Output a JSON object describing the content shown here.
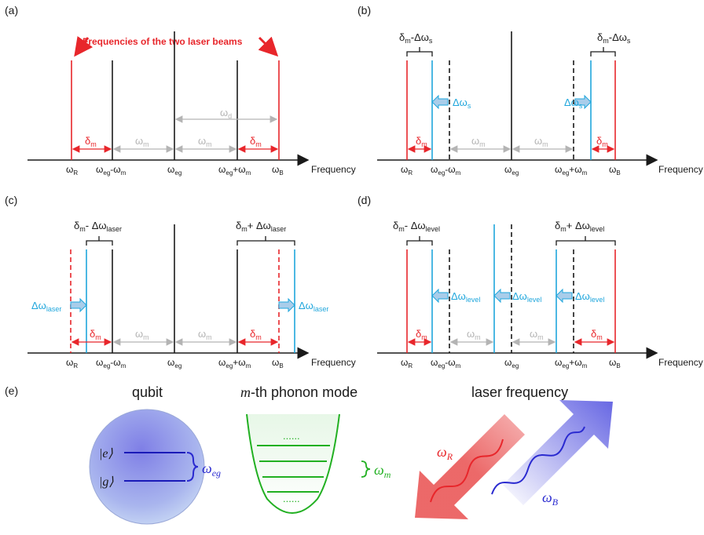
{
  "colors": {
    "red": "#e8262b",
    "cyan": "#1fa6dc",
    "gray": "#b4b4b4",
    "black": "#1a1a1a",
    "blue": "#2a2ad0",
    "green": "#22b022",
    "arrowFill": "#a9cdea"
  },
  "panel_a": {
    "tag": "(a)",
    "callout": "Frequencies of the two laser beams",
    "labels": {
      "wR": "ω",
      "wRsub": "R",
      "lower": "ω",
      "lowerSub": "eg",
      "lowerTail": "-ω",
      "lowerTailSub": "m",
      "center": "ω",
      "centerSub": "eg",
      "upper": "ω",
      "upperSub": "eg",
      "upperTail": "+ω",
      "upperTailSub": "m",
      "wB": "ω",
      "wBsub": "B"
    },
    "axis_label": "Frequency",
    "delta": "δ",
    "deltaSub": "m",
    "omega_m": "ω",
    "omega_mSub": "m",
    "omega_d": "ω",
    "omega_dSub": "d"
  },
  "panel_b": {
    "tag": "(b)",
    "bracket_left": "δ",
    "bracket_leftSub": "m",
    "bracket_leftTail": "-Δω",
    "bracket_leftTailSub": "s",
    "bracket_right": "δ",
    "bracket_rightSub": "m",
    "bracket_rightTail": "-Δω",
    "bracket_rightTailSub": "s",
    "shift": "Δω",
    "shiftSub": "s"
  },
  "panel_c": {
    "tag": "(c)",
    "bracket_left": "δ",
    "bracket_leftSub": "m",
    "bracket_leftTail": "- Δω",
    "bracket_leftTailSub": "laser",
    "bracket_right": "δ",
    "bracket_rightSub": "m",
    "bracket_rightTail": "+ Δω",
    "bracket_rightTailSub": "laser",
    "shift": "Δω",
    "shiftSub": "laser"
  },
  "panel_d": {
    "tag": "(d)",
    "bracket_left": "δ",
    "bracket_leftSub": "m",
    "bracket_leftTail": "- Δω",
    "bracket_leftTailSub": "level",
    "bracket_right": "δ",
    "bracket_rightSub": "m",
    "bracket_rightTail": "+ Δω",
    "bracket_rightTailSub": "level",
    "shift": "Δω",
    "shiftSub": "level"
  },
  "panel_e": {
    "tag": "(e)",
    "qubit_title": "qubit",
    "ket_e": "|e⟩",
    "ket_g": "|g⟩",
    "omega_eg": "ω",
    "omega_egSub": "eg",
    "phonon_title_m": "m",
    "phonon_title_rest": "-th phonon mode",
    "dots": "......",
    "omega_m": "ω",
    "omega_mSub": "m",
    "laser_title": "laser frequency",
    "omega_R": "ω",
    "omega_RSub": "R",
    "omega_B": "ω",
    "omega_BSub": "B"
  }
}
